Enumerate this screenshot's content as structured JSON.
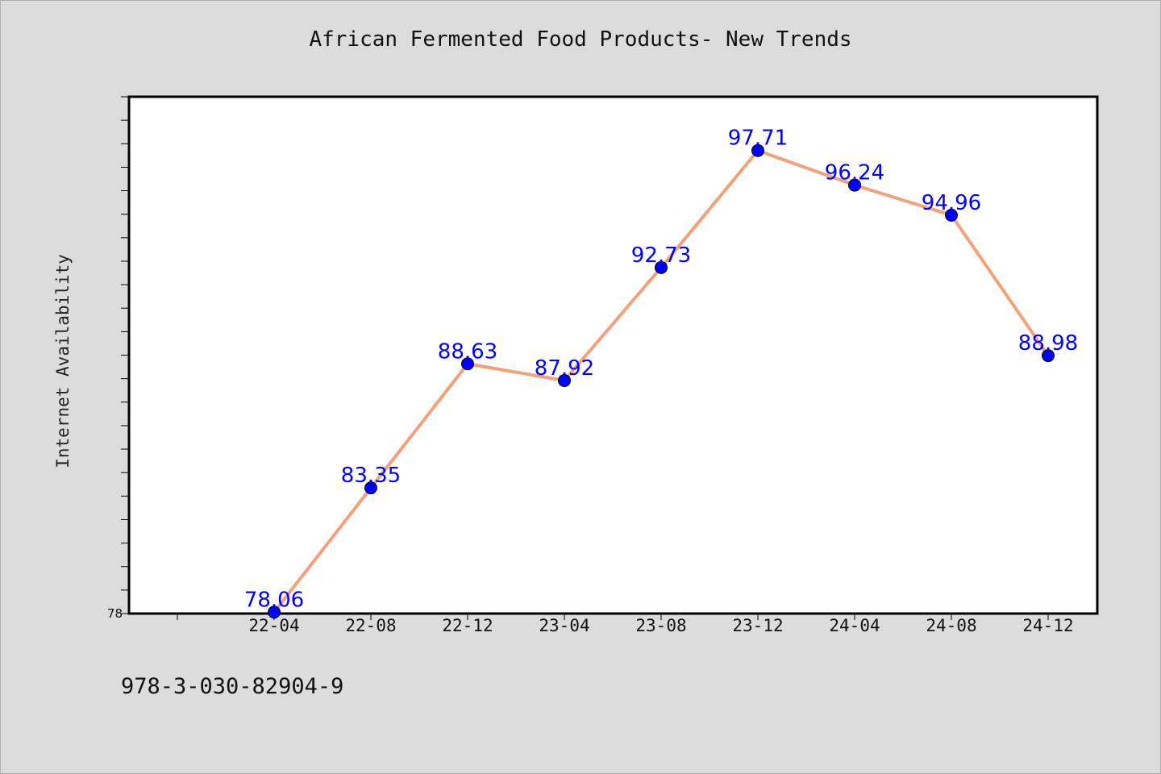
{
  "footer_text": "978-3-030-82904-9",
  "chart_data": {
    "type": "line",
    "title": "African Fermented Food Products- New Trends",
    "xlabel": "",
    "ylabel": "Internet Availability",
    "categories": [
      "22-04",
      "22-08",
      "22-12",
      "23-04",
      "23-08",
      "23-12",
      "24-04",
      "24-08",
      "24-12"
    ],
    "series": [
      {
        "values": [
          78.06,
          83.35,
          88.63,
          87.92,
          92.73,
          97.71,
          96.24,
          94.96,
          88.98
        ]
      }
    ],
    "ylim": [
      78,
      100
    ],
    "yticks_labeled": [
      "78"
    ],
    "grid": false,
    "legend": "none",
    "colors": {
      "line": "#f4a07a",
      "marker": "#0000ff",
      "marker_edge": "#000000",
      "data_label": "#0000ff",
      "plot_background": "#ffffff",
      "page_background": "#dcdcdc"
    }
  }
}
